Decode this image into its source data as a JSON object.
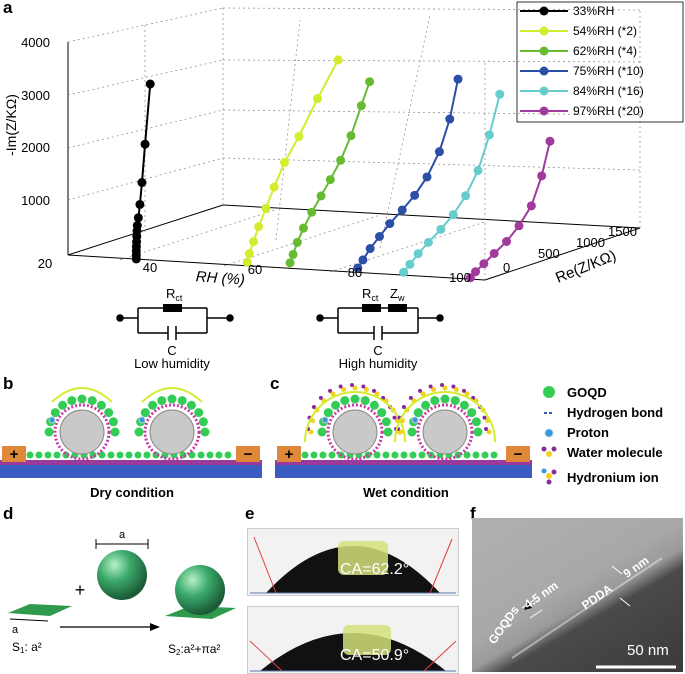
{
  "panels": {
    "a": "a",
    "b": "b",
    "c": "c",
    "d": "d",
    "e": "e",
    "f": "f"
  },
  "chart_data": {
    "type": "line",
    "title": "",
    "xlabel": "RH (%)",
    "ylabel": "-Im(Z/KΩ)",
    "zlabel": "Re(Z/KΩ)",
    "x_ticks": [
      "20",
      "40",
      "60",
      "80",
      "100"
    ],
    "y_ticks": [
      "1000",
      "2000",
      "3000",
      "4000"
    ],
    "z_ticks": [
      "0",
      "500",
      "1000",
      "1500"
    ],
    "legend_position": "top-right",
    "series": [
      {
        "name": "33%RH",
        "rh": 33,
        "color": "#000000",
        "re": [
          5,
          5,
          5,
          6,
          8,
          10,
          12,
          15,
          25,
          40,
          60,
          90,
          140
        ],
        "im": [
          0,
          70,
          150,
          230,
          320,
          420,
          520,
          620,
          760,
          1000,
          1400,
          2100,
          3200
        ]
      },
      {
        "name": "54%RH (*2)",
        "rh": 54,
        "color": "#d4ec2e",
        "re": [
          20,
          40,
          80,
          130,
          200,
          280,
          380,
          520,
          700,
          900
        ],
        "im": [
          50,
          200,
          400,
          650,
          950,
          1300,
          1700,
          2100,
          2700,
          3300
        ]
      },
      {
        "name": "62%RH (*4)",
        "rh": 62,
        "color": "#66bb33",
        "re": [
          30,
          60,
          100,
          160,
          240,
          330,
          420,
          520,
          620,
          720,
          800
        ],
        "im": [
          80,
          220,
          420,
          650,
          900,
          1150,
          1400,
          1700,
          2100,
          2600,
          3000
        ]
      },
      {
        "name": "75%RH (*10)",
        "rh": 75,
        "color": "#2b4ea6",
        "re": [
          30,
          80,
          150,
          240,
          340,
          460,
          580,
          700,
          820,
          920,
          1000
        ],
        "im": [
          60,
          180,
          350,
          520,
          700,
          880,
          1080,
          1350,
          1750,
          2300,
          3000
        ]
      },
      {
        "name": "84%RH (*16)",
        "rh": 84,
        "color": "#66cccc",
        "re": [
          20,
          80,
          160,
          260,
          380,
          500,
          620,
          740,
          850,
          950
        ],
        "im": [
          40,
          150,
          300,
          450,
          620,
          820,
          1100,
          1500,
          2100,
          2800
        ]
      },
      {
        "name": "97%RH (*20)",
        "rh": 97,
        "color": "#a03a9c",
        "re": [
          10,
          60,
          140,
          240,
          360,
          480,
          600,
          700,
          780
        ],
        "im": [
          20,
          100,
          200,
          330,
          480,
          700,
          1000,
          1500,
          2100
        ]
      }
    ]
  },
  "circuits": {
    "low_r": "R",
    "low_r_sub": "ct",
    "low_c": "C",
    "low_caption": "Low humidity",
    "high_r": "R",
    "high_r_sub": "ct",
    "high_z": "Z",
    "high_z_sub": "w",
    "high_c": "C",
    "high_caption": "High humidity"
  },
  "schematic": {
    "dry_caption": "Dry condition",
    "wet_caption": "Wet condition",
    "plus": "+",
    "minus": "−",
    "legend": [
      {
        "label": "GOQD"
      },
      {
        "label": "Hydrogen bond"
      },
      {
        "label": "Proton"
      },
      {
        "label": "Water molecule"
      },
      {
        "label": "Hydronium ion"
      }
    ]
  },
  "geometry": {
    "a_label": "a",
    "plus": "+",
    "s1_label": "S",
    "s1_sub": "1",
    "s1_value": ": a²",
    "s2_label": "S",
    "s2_sub": "2",
    "s2_value": ":a²+πa²"
  },
  "contact_angles": {
    "top": "CA=62.2°",
    "bottom": "CA=50.9°"
  },
  "tem": {
    "goqds": "GOQDs",
    "thickness1": "4.5 nm",
    "pdda": "PDDA",
    "thickness2": "9 nm",
    "scale": "50 nm"
  }
}
